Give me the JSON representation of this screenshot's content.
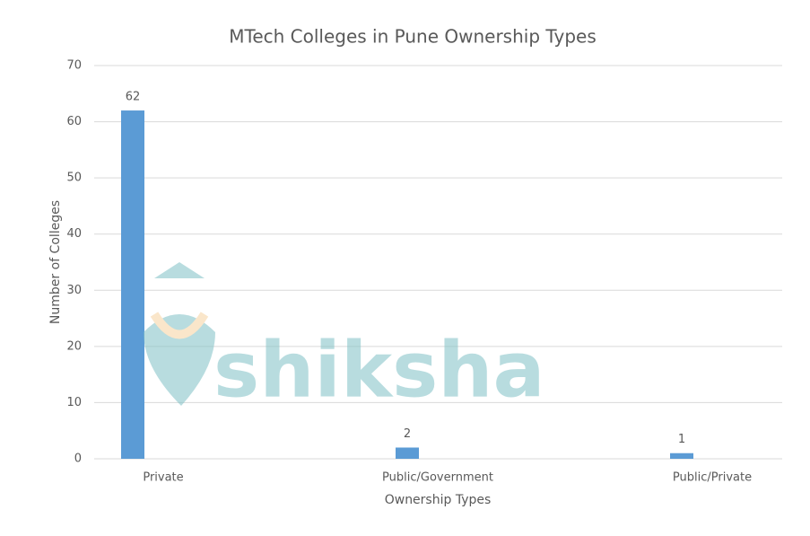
{
  "chart_data": {
    "type": "bar",
    "title": "MTech Colleges in Pune Ownership Types",
    "x_label": "Ownership Types",
    "y_label": "Number of Colleges",
    "categories": [
      "Private",
      "Public/Government",
      "Public/Private"
    ],
    "values": [
      62,
      2,
      1
    ],
    "color": "#5b9bd5",
    "ylim": [
      0,
      70
    ],
    "yticks": [
      0,
      10,
      20,
      30,
      40,
      50,
      60,
      70
    ],
    "grid": true,
    "watermark": "shiksha"
  }
}
